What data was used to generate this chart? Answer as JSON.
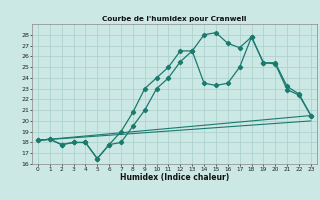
{
  "title": "Courbe de l'humidex pour Cranwell",
  "xlabel": "Humidex (Indice chaleur)",
  "background_color": "#cce8e4",
  "line_color": "#1a7a6e",
  "grid_color": "#aacfcb",
  "xlim": [
    -0.5,
    23.5
  ],
  "ylim": [
    16,
    29
  ],
  "xticks": [
    0,
    1,
    2,
    3,
    4,
    5,
    6,
    7,
    8,
    9,
    10,
    11,
    12,
    13,
    14,
    15,
    16,
    17,
    18,
    19,
    20,
    21,
    22,
    23
  ],
  "yticks": [
    16,
    17,
    18,
    19,
    20,
    21,
    22,
    23,
    24,
    25,
    26,
    27,
    28
  ],
  "series": [
    {
      "x": [
        0,
        1,
        2,
        3,
        4,
        5,
        6,
        7,
        8,
        9,
        10,
        11,
        12,
        13,
        14,
        15,
        16,
        17,
        18,
        19,
        20,
        21,
        22,
        23
      ],
      "y": [
        18.2,
        18.3,
        17.8,
        18.0,
        18.0,
        16.5,
        17.8,
        18.0,
        19.5,
        21.0,
        23.0,
        24.0,
        25.5,
        26.5,
        28.0,
        28.2,
        27.2,
        26.8,
        27.8,
        25.4,
        25.4,
        23.2,
        22.5,
        20.5
      ],
      "marker": "D",
      "markersize": 2.2,
      "linewidth": 0.9
    },
    {
      "x": [
        0,
        1,
        2,
        3,
        4,
        5,
        6,
        7,
        8,
        9,
        10,
        11,
        12,
        13,
        14,
        15,
        16,
        17,
        18,
        19,
        20,
        21,
        22,
        23
      ],
      "y": [
        18.2,
        18.3,
        17.8,
        18.0,
        18.0,
        16.5,
        17.8,
        19.0,
        20.8,
        23.0,
        24.0,
        25.0,
        26.5,
        26.5,
        23.5,
        23.3,
        23.5,
        25.0,
        27.8,
        25.4,
        25.3,
        22.9,
        22.4,
        20.5
      ],
      "marker": "D",
      "markersize": 2.2,
      "linewidth": 0.9
    },
    {
      "x": [
        0,
        23
      ],
      "y": [
        18.2,
        20.5
      ],
      "marker": null,
      "linewidth": 0.8
    },
    {
      "x": [
        0,
        23
      ],
      "y": [
        18.2,
        20.0
      ],
      "marker": null,
      "linewidth": 0.8
    }
  ]
}
